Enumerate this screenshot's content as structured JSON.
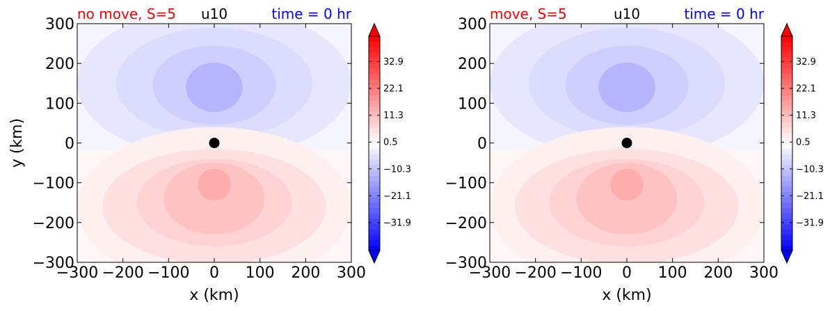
{
  "chart_data": [
    {
      "type": "heatmap",
      "title_left": "no move, S=5",
      "title_center": "u10",
      "title_right": "time = 0 hr",
      "title_colors": {
        "left": "#ff0000",
        "center": "#000000",
        "right": "#0000ff"
      },
      "xlabel": "x (km)",
      "ylabel": "y (km)",
      "xlim": [
        -300,
        300
      ],
      "ylim": [
        -300,
        300
      ],
      "xticks": [
        -300,
        -200,
        -100,
        0,
        100,
        200,
        300
      ],
      "yticks": [
        -300,
        -200,
        -100,
        0,
        100,
        200,
        300
      ],
      "xtick_labels": [
        "−300",
        "−200",
        "−100",
        "0",
        "100",
        "200",
        "300"
      ],
      "ytick_labels": [
        "−300",
        "−200",
        "−100",
        "0",
        "100",
        "200",
        "300"
      ],
      "marker": {
        "x": 0,
        "y": 0,
        "color": "#000000"
      },
      "colorbar": {
        "cmap": "bwr",
        "range": [
          -43.1,
          43.1
        ],
        "extend": "both",
        "tick_values": [
          32.9,
          22.1,
          11.3,
          0.5,
          -10.3,
          -21.1,
          -31.9
        ],
        "tick_labels": [
          "32.9",
          "22.1",
          "11.3",
          "0.5",
          "−10.3",
          "−21.1",
          "−31.9"
        ]
      }
    },
    {
      "type": "heatmap",
      "title_left": "move, S=5",
      "title_center": "u10",
      "title_right": "time = 0 hr",
      "title_colors": {
        "left": "#ff0000",
        "center": "#000000",
        "right": "#0000ff"
      },
      "xlabel": "x (km)",
      "ylabel": "",
      "xlim": [
        -300,
        300
      ],
      "ylim": [
        -300,
        300
      ],
      "xticks": [
        -300,
        -200,
        -100,
        0,
        100,
        200,
        300
      ],
      "yticks": [
        -300,
        -200,
        -100,
        0,
        100,
        200,
        300
      ],
      "xtick_labels": [
        "−300",
        "−200",
        "−100",
        "0",
        "100",
        "200",
        "300"
      ],
      "ytick_labels": [
        "−300",
        "−200",
        "−100",
        "0",
        "100",
        "200",
        "300"
      ],
      "marker": {
        "x": 0,
        "y": 0,
        "color": "#000000"
      },
      "colorbar": {
        "cmap": "bwr",
        "range": [
          -43.1,
          43.1
        ],
        "extend": "both",
        "tick_values": [
          32.9,
          22.1,
          11.3,
          0.5,
          -10.3,
          -21.1,
          -31.9
        ],
        "tick_labels": [
          "32.9",
          "22.1",
          "11.3",
          "0.5",
          "−10.3",
          "−21.1",
          "−31.9"
        ]
      }
    }
  ]
}
